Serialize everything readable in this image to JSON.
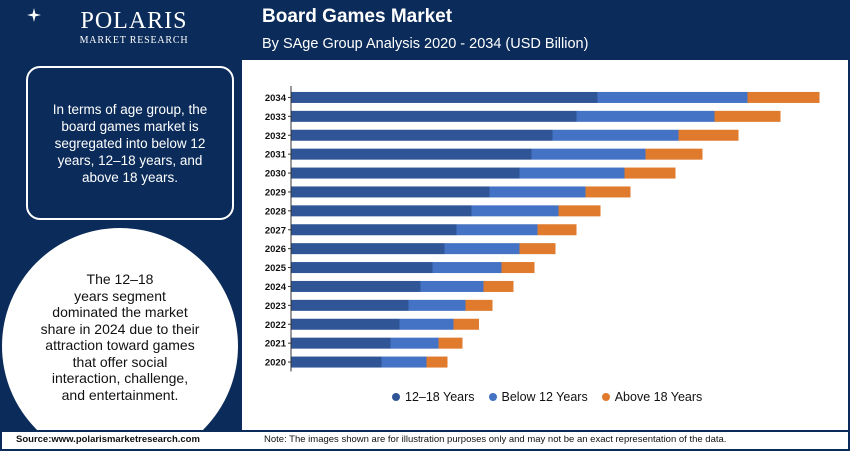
{
  "header": {
    "logo_name": "POLARIS",
    "logo_sub": "MARKET RESEARCH",
    "title": "Board Games Market",
    "subtitle": "By SAge Group Analysis 2020 - 2034 (USD Billion)"
  },
  "left": {
    "info_text": "In terms of age group, the board games market is segregated into below 12 years, 12–18 years, and above 18 years.",
    "circle_lines": [
      "The 12–18",
      "years segment",
      "dominated the market",
      "share in 2024 due to their",
      "attraction toward games",
      "that offer social",
      "interaction, challenge,",
      "and entertainment."
    ]
  },
  "footer": {
    "source": "Source:www.polarismarketresearch.com",
    "note": "Note: The images shown are for illustration purposes only and may not be an exact representation of the data."
  },
  "colors": {
    "navy": "#0b2c5a",
    "s1": "#2f5597",
    "s2": "#4472c4",
    "s3": "#e07a2c"
  },
  "chart_data": {
    "type": "bar",
    "orientation": "horizontal",
    "stacked": true,
    "categories": [
      "2034",
      "2033",
      "2032",
      "2031",
      "2030",
      "2029",
      "2028",
      "2027",
      "2026",
      "2025",
      "2024",
      "2023",
      "2022",
      "2021",
      "2020"
    ],
    "series": [
      {
        "name": "12–18 Years",
        "values": [
          10.2,
          9.5,
          8.7,
          8.0,
          7.6,
          6.6,
          6.0,
          5.5,
          5.1,
          4.7,
          4.3,
          3.9,
          3.6,
          3.3,
          3.0
        ]
      },
      {
        "name": "Below 12 Years",
        "values": [
          5.0,
          4.6,
          4.2,
          3.8,
          3.5,
          3.2,
          2.9,
          2.7,
          2.5,
          2.3,
          2.1,
          1.9,
          1.8,
          1.6,
          1.5
        ]
      },
      {
        "name": "Above 18 Years",
        "values": [
          2.4,
          2.2,
          2.0,
          1.9,
          1.7,
          1.5,
          1.4,
          1.3,
          1.2,
          1.1,
          1.0,
          0.9,
          0.85,
          0.8,
          0.7
        ]
      }
    ],
    "xlim": [
      0,
      18
    ],
    "legend_position": "bottom",
    "grid": false
  }
}
